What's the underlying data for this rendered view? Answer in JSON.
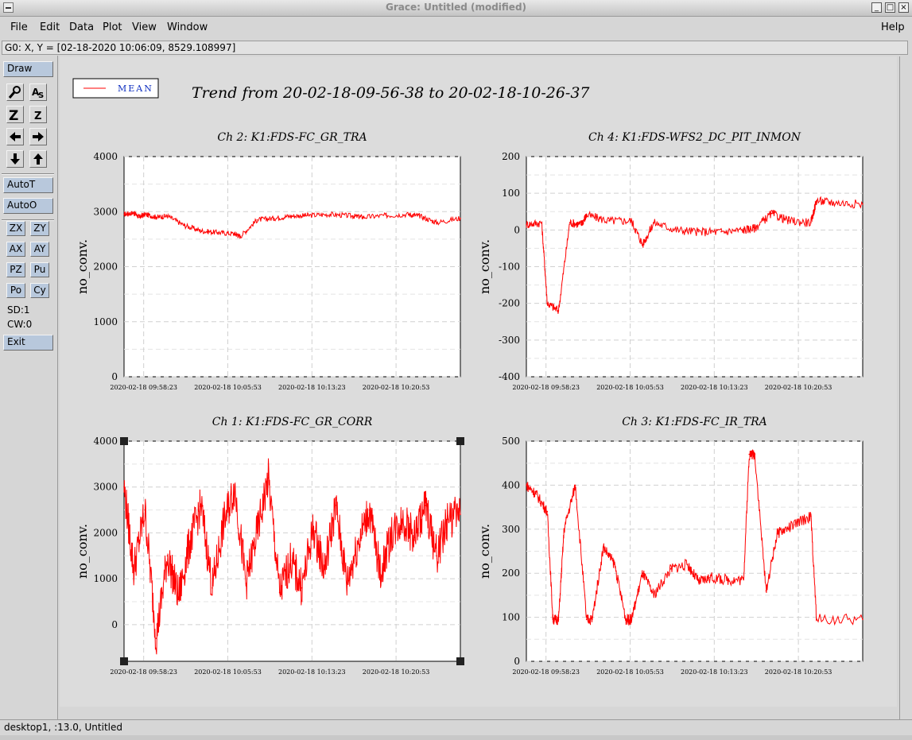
{
  "window": {
    "title": "Grace: Untitled (modified)",
    "minimize": "_",
    "maximize": "□",
    "close": "×"
  },
  "menubar": {
    "file": "File",
    "edit": "Edit",
    "data": "Data",
    "plot": "Plot",
    "view": "View",
    "window": "Window",
    "help": "Help"
  },
  "locator": "G0: X, Y = [02-18-2020 10:06:09, 8529.108997]",
  "toolbar": {
    "draw": "Draw",
    "autot": "AutoT",
    "autoo": "AutoO",
    "zx": "ZX",
    "zy": "ZY",
    "ax": "AX",
    "ay": "AY",
    "pz": "PZ",
    "pu": "Pu",
    "po": "Po",
    "cy": "Cy",
    "sd": "SD:1",
    "cw": "CW:0",
    "exit": "Exit"
  },
  "footer": "desktop1, :13.0, Untitled",
  "figure": {
    "title": "Trend from 20-02-18-09-56-38 to 20-02-18-10-26-37",
    "legend": "MEAN",
    "series_color": "#ff0000"
  },
  "chart_data": [
    {
      "type": "line",
      "title": "Ch 2: K1:FDS-FC_GR_TRA",
      "ylabel": "no_conv.",
      "ylim": [
        0,
        4000
      ],
      "yticks": [
        0,
        1000,
        2000,
        3000,
        4000
      ],
      "xlim": [
        "2020-02-18 09:56:38",
        "2020-02-18 10:26:37"
      ],
      "xticks": [
        "2020-02-18 09:58:23",
        "2020-02-18 10:05:53",
        "2020-02-18 10:13:23",
        "2020-02-18 10:20:53"
      ],
      "series": [
        {
          "x": [
            "09:56:38",
            "09:57:30",
            "09:58:00",
            "09:58:30",
            "09:59:30",
            "10:00:30",
            "10:02:00",
            "10:03:30",
            "10:05:00",
            "10:06:30",
            "10:07:00",
            "10:08:30",
            "10:10:00",
            "10:11:30",
            "10:13:00",
            "10:15:00",
            "10:17:00",
            "10:18:00",
            "10:20:00",
            "10:22:00",
            "10:23:00",
            "10:24:30",
            "10:26:37"
          ],
          "y": [
            2950,
            2980,
            2900,
            2950,
            2900,
            2920,
            2750,
            2650,
            2620,
            2600,
            2550,
            2850,
            2880,
            2920,
            2930,
            2950,
            2920,
            2900,
            2930,
            2950,
            2920,
            2800,
            2880
          ]
        }
      ]
    },
    {
      "type": "line",
      "title": "Ch 4: K1:FDS-WFS2_DC_PIT_INMON",
      "ylabel": "no_conv.",
      "ylim": [
        -400,
        200
      ],
      "yticks": [
        -400,
        -300,
        -200,
        -100,
        0,
        100,
        200
      ],
      "xlim": [
        "2020-02-18 09:56:38",
        "2020-02-18 10:26:37"
      ],
      "xticks": [
        "2020-02-18 09:58:23",
        "2020-02-18 10:05:53",
        "2020-02-18 10:13:23",
        "2020-02-18 10:20:53"
      ],
      "series": [
        {
          "x": [
            "09:56:38",
            "09:58:00",
            "09:58:30",
            "09:59:30",
            "10:00:30",
            "10:01:30",
            "10:02:00",
            "10:04:00",
            "10:06:00",
            "10:07:00",
            "10:08:00",
            "10:10:00",
            "10:12:00",
            "10:14:00",
            "10:16:00",
            "10:17:00",
            "10:18:30",
            "10:20:00",
            "10:22:00",
            "10:22:30",
            "10:24:00",
            "10:26:37"
          ],
          "y": [
            15,
            20,
            -200,
            -220,
            20,
            15,
            40,
            25,
            25,
            -40,
            20,
            0,
            -5,
            -5,
            0,
            5,
            45,
            25,
            20,
            80,
            75,
            70
          ]
        }
      ]
    },
    {
      "type": "line",
      "title": "Ch 1: K1:FDS-FC_GR_CORR",
      "ylabel": "no_conv.",
      "ylim": [
        -800,
        4000
      ],
      "yticks": [
        0,
        1000,
        2000,
        3000,
        4000
      ],
      "xlim": [
        "2020-02-18 09:56:38",
        "2020-02-18 10:26:37"
      ],
      "xticks": [
        "2020-02-18 09:58:23",
        "2020-02-18 10:05:53",
        "2020-02-18 10:13:23",
        "2020-02-18 10:20:53"
      ],
      "series": [
        {
          "x": [
            "09:56:38",
            "09:57:30",
            "09:58:30",
            "09:59:30",
            "10:00:30",
            "10:01:30",
            "10:02:30",
            "10:03:30",
            "10:04:30",
            "10:05:30",
            "10:06:30",
            "10:07:30",
            "10:08:30",
            "10:09:30",
            "10:10:30",
            "10:11:30",
            "10:12:30",
            "10:13:30",
            "10:14:30",
            "10:15:30",
            "10:16:30",
            "10:17:30",
            "10:18:30",
            "10:19:30",
            "10:20:30",
            "10:21:30",
            "10:22:30",
            "10:23:30",
            "10:24:30",
            "10:25:30",
            "10:26:37"
          ],
          "y": [
            3000,
            1200,
            2500,
            -300,
            1500,
            600,
            1800,
            2600,
            800,
            2200,
            3000,
            900,
            2000,
            3200,
            700,
            1400,
            800,
            2100,
            1200,
            2600,
            900,
            1800,
            2500,
            1100,
            2000,
            2300,
            1900,
            2600,
            1500,
            2300,
            2400
          ]
        }
      ]
    },
    {
      "type": "line",
      "title": "Ch 3: K1:FDS-FC_IR_TRA",
      "ylabel": "no_conv.",
      "ylim": [
        0,
        500
      ],
      "yticks": [
        0,
        100,
        200,
        300,
        400,
        500
      ],
      "xlim": [
        "2020-02-18 09:56:38",
        "2020-02-18 10:26:37"
      ],
      "xticks": [
        "2020-02-18 09:58:23",
        "2020-02-18 10:05:53",
        "2020-02-18 10:13:23",
        "2020-02-18 10:20:53"
      ],
      "series": [
        {
          "x": [
            "09:56:38",
            "09:57:30",
            "09:58:30",
            "09:59:00",
            "09:59:30",
            "10:00:00",
            "10:01:00",
            "10:02:00",
            "10:02:30",
            "10:03:30",
            "10:04:30",
            "10:05:30",
            "10:06:00",
            "10:07:00",
            "10:08:00",
            "10:09:30",
            "10:11:00",
            "10:12:00",
            "10:13:00",
            "10:14:30",
            "10:16:00",
            "10:16:30",
            "10:17:00",
            "10:18:00",
            "10:19:00",
            "10:20:30",
            "10:22:00",
            "10:22:30",
            "10:26:37"
          ],
          "y": [
            400,
            380,
            340,
            95,
            95,
            300,
            400,
            95,
            95,
            260,
            220,
            95,
            95,
            200,
            150,
            210,
            220,
            180,
            190,
            185,
            185,
            470,
            470,
            160,
            290,
            310,
            330,
            95,
            95
          ]
        }
      ]
    }
  ]
}
